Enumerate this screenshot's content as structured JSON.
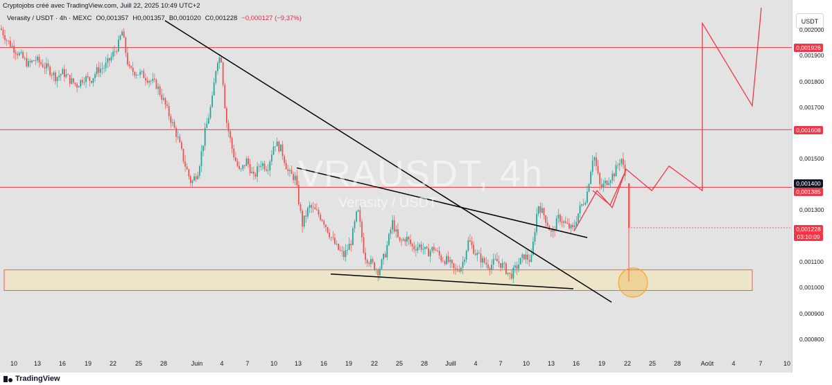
{
  "header": {
    "credit": "Cryptojobs créé avec TradingView.com, Juill 22, 2025 10:49 UTC+2",
    "symbol": "Verasity / USDT · 4h · MEXC",
    "open": "O0,001357",
    "high": "H0,001357",
    "low": "B0,001020",
    "close": "C0,001228",
    "change": "−0,000127 (−9,37%)"
  },
  "currency_button": "USDT",
  "watermark": {
    "ticker": "VRAUSDT, 4h",
    "name": "Verasity / USDT"
  },
  "footer": {
    "brand": "TradingView"
  },
  "price_axis": {
    "ticks": [
      "0,002000",
      "0,001900",
      "0,001800",
      "0,001700",
      "0,001500",
      "0,001300",
      "0,001100",
      "0,001000",
      "0,000900",
      "0,000800"
    ],
    "labels": [
      {
        "text": "0,001926",
        "value": 0.001926,
        "color": "#f23645"
      },
      {
        "text": "0,001608",
        "value": 0.001608,
        "color": "#f23645"
      },
      {
        "text": "0,001400",
        "value": 0.0014,
        "color": "#131722"
      },
      {
        "text": "0,001385",
        "value": 0.001385,
        "color": "#f23645"
      },
      {
        "text": "0,001228",
        "value": 0.001228,
        "color": "#f23645"
      },
      {
        "text": "03:10:09",
        "value": null,
        "color": "#f23645"
      }
    ]
  },
  "time_axis": {
    "labels": [
      "10",
      "13",
      "16",
      "19",
      "22",
      "25",
      "28",
      "Juin",
      "4",
      "7",
      "10",
      "13",
      "16",
      "19",
      "22",
      "25",
      "28",
      "Juill",
      "4",
      "7",
      "10",
      "13",
      "16",
      "19",
      "22",
      "25",
      "28",
      "Août",
      "4",
      "7",
      "10"
    ]
  },
  "colors": {
    "up": "#26a69a",
    "down": "#ef5350",
    "level_line": "#f23645",
    "trendline": "#000000",
    "zone_fill": "#f0e6c0",
    "circle": "#f5a623"
  },
  "chart_data": {
    "type": "candlestick",
    "timeframe": "4h",
    "exchange": "MEXC",
    "ylim": [
      0.00076,
      0.00208
    ],
    "horizontal_levels": [
      0.001926,
      0.001608,
      0.001385
    ],
    "support_zone": [
      0.000985,
      0.001065
    ],
    "price_path": [
      [
        0,
        0.002
      ],
      [
        10,
        0.00195
      ],
      [
        20,
        0.00192
      ],
      [
        30,
        0.00189
      ],
      [
        40,
        0.00186
      ],
      [
        50,
        0.00188
      ],
      [
        60,
        0.00186
      ],
      [
        70,
        0.00184
      ],
      [
        80,
        0.00181
      ],
      [
        90,
        0.00183
      ],
      [
        100,
        0.0018
      ],
      [
        110,
        0.00178
      ],
      [
        120,
        0.00181
      ],
      [
        130,
        0.0018
      ],
      [
        140,
        0.00184
      ],
      [
        150,
        0.00185
      ],
      [
        160,
        0.00189
      ],
      [
        170,
        0.00194
      ],
      [
        175,
        0.00199
      ],
      [
        185,
        0.00184
      ],
      [
        195,
        0.00183
      ],
      [
        205,
        0.00182
      ],
      [
        215,
        0.0018
      ],
      [
        225,
        0.00178
      ],
      [
        235,
        0.00172
      ],
      [
        245,
        0.00165
      ],
      [
        255,
        0.00158
      ],
      [
        265,
        0.00148
      ],
      [
        275,
        0.0014
      ],
      [
        285,
        0.00145
      ],
      [
        295,
        0.0016
      ],
      [
        305,
        0.00172
      ],
      [
        312,
        0.00188
      ],
      [
        318,
        0.00189
      ],
      [
        325,
        0.00165
      ],
      [
        335,
        0.00152
      ],
      [
        345,
        0.00144
      ],
      [
        355,
        0.00149
      ],
      [
        365,
        0.00142
      ],
      [
        375,
        0.00148
      ],
      [
        385,
        0.00146
      ],
      [
        395,
        0.00156
      ],
      [
        405,
        0.00153
      ],
      [
        415,
        0.00144
      ],
      [
        425,
        0.00142
      ],
      [
        435,
        0.00124
      ],
      [
        445,
        0.00131
      ],
      [
        455,
        0.00129
      ],
      [
        465,
        0.00126
      ],
      [
        475,
        0.0012
      ],
      [
        485,
        0.00115
      ],
      [
        495,
        0.00112
      ],
      [
        505,
        0.00117
      ],
      [
        515,
        0.0013
      ],
      [
        525,
        0.00112
      ],
      [
        535,
        0.00109
      ],
      [
        545,
        0.00106
      ],
      [
        555,
        0.00113
      ],
      [
        565,
        0.00125
      ],
      [
        575,
        0.00117
      ],
      [
        585,
        0.00119
      ],
      [
        595,
        0.00115
      ],
      [
        605,
        0.00116
      ],
      [
        615,
        0.00113
      ],
      [
        625,
        0.00115
      ],
      [
        635,
        0.00111
      ],
      [
        645,
        0.0011
      ],
      [
        655,
        0.00106
      ],
      [
        665,
        0.00108
      ],
      [
        675,
        0.00118
      ],
      [
        685,
        0.00113
      ],
      [
        695,
        0.0011
      ],
      [
        705,
        0.00108
      ],
      [
        715,
        0.0011
      ],
      [
        725,
        0.00108
      ],
      [
        735,
        0.00104
      ],
      [
        745,
        0.00108
      ],
      [
        755,
        0.00112
      ],
      [
        765,
        0.0011
      ],
      [
        775,
        0.00132
      ],
      [
        785,
        0.00127
      ],
      [
        795,
        0.0012
      ],
      [
        805,
        0.00127
      ],
      [
        815,
        0.00124
      ],
      [
        825,
        0.00122
      ],
      [
        835,
        0.0013
      ],
      [
        845,
        0.00135
      ],
      [
        855,
        0.00152
      ],
      [
        865,
        0.00138
      ],
      [
        875,
        0.00141
      ],
      [
        885,
        0.00144
      ],
      [
        895,
        0.0015
      ],
      [
        903,
        0.0014
      ],
      [
        907,
        0.00124
      ]
    ],
    "last_wick_low": 0.00102,
    "current_price": 0.001228,
    "countdown": "03:10:09",
    "trendlines": [
      {
        "from": [
          238,
          0.00203
        ],
        "to": [
          882,
          0.00094
        ]
      },
      {
        "from": [
          428,
          0.00146
        ],
        "to": [
          847,
          0.00119
        ]
      },
      {
        "from": [
          477,
          0.001049
        ],
        "to": [
          827,
          0.000992
        ]
      }
    ],
    "projection": [
      [
        828,
        0.001215
      ],
      [
        861,
        0.001372
      ],
      [
        883,
        0.001306
      ],
      [
        903,
        0.001455
      ],
      [
        940,
        0.001372
      ],
      [
        965,
        0.001467
      ],
      [
        1013,
        0.001372
      ],
      [
        1013,
        0.00202
      ],
      [
        1085,
        0.0017
      ],
      [
        1098,
        0.00208
      ]
    ],
    "projection_swing": [
      [
        855,
        0.001372
      ],
      [
        880,
        0.001316
      ],
      [
        900,
        0.001435
      ]
    ],
    "marker_circle": {
      "x": 913,
      "price": 0.001016
    }
  }
}
